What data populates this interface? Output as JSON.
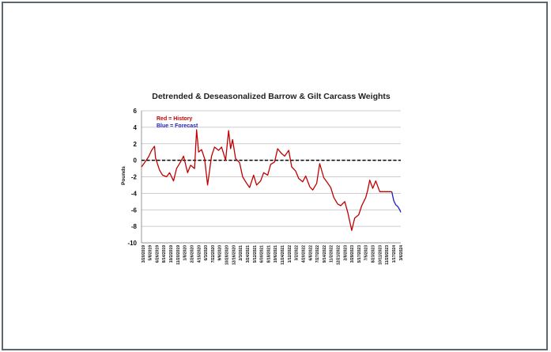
{
  "chart_data": {
    "type": "line",
    "title": "Detrended & Deseasonalized Barrow & Gilt Carcass Weights",
    "xlabel": "",
    "ylabel": "Pounds",
    "ylim": [
      -10,
      6
    ],
    "yticks": [
      "6",
      "4",
      "2",
      "0",
      "-2",
      "-4",
      "-6",
      "-8",
      "-10"
    ],
    "grid": true,
    "annotations": [
      {
        "text": "Red = History",
        "color": "#c00000"
      },
      {
        "text": "Blue = Forecast",
        "color": "#1f1fbf"
      }
    ],
    "x_tick_labels": [
      "3/20/2019",
      "5/8/2019",
      "6/26/2019",
      "8/14/2019",
      "10/2/2019",
      "11/20/2019",
      "1/8/2020",
      "2/26/2020",
      "4/15/2020",
      "6/3/2020",
      "7/22/2020",
      "9/9/2020",
      "10/28/2020",
      "12/16/2020",
      "2/3/2021",
      "3/24/2021",
      "5/12/2021",
      "6/30/2021",
      "8/18/2021",
      "10/6/2021",
      "11/24/2021",
      "1/12/2022",
      "3/2/2022",
      "4/20/2022",
      "6/8/2022",
      "7/27/2022",
      "9/14/2022",
      "11/2/2022",
      "12/21/2022",
      "2/8/2023",
      "3/29/2023",
      "5/17/2023",
      "7/5/2023",
      "8/23/2023",
      "10/11/2023",
      "11/29/2023",
      "1/17/2024",
      "3/6/2024"
    ],
    "zero_line": {
      "value": 0,
      "style": "dashed",
      "color": "#000000"
    },
    "series": [
      {
        "color": "#c00000",
        "x": [
          "2019-03-20",
          "2019-04-10",
          "2019-05-08",
          "2019-05-29",
          "2019-06-19",
          "2019-06-26",
          "2019-07-24",
          "2019-08-14",
          "2019-09-11",
          "2019-10-02",
          "2019-10-30",
          "2019-11-20",
          "2019-12-18",
          "2020-01-08",
          "2020-02-05",
          "2020-02-26",
          "2020-03-25",
          "2020-04-08",
          "2020-04-22",
          "2020-05-13",
          "2020-06-03",
          "2020-06-24",
          "2020-07-22",
          "2020-08-12",
          "2020-09-09",
          "2020-09-30",
          "2020-10-28",
          "2020-11-18",
          "2020-12-02",
          "2020-12-16",
          "2021-01-06",
          "2021-02-03",
          "2021-02-24",
          "2021-03-24",
          "2021-04-14",
          "2021-05-12",
          "2021-06-02",
          "2021-06-30",
          "2021-07-21",
          "2021-08-18",
          "2021-09-08",
          "2021-10-06",
          "2021-10-27",
          "2021-11-24",
          "2021-12-15",
          "2022-01-12",
          "2022-02-02",
          "2022-03-02",
          "2022-03-23",
          "2022-04-20",
          "2022-05-11",
          "2022-06-08",
          "2022-06-29",
          "2022-07-27",
          "2022-08-17",
          "2022-09-14",
          "2022-10-05",
          "2022-11-02",
          "2022-11-23",
          "2022-12-21",
          "2023-01-11",
          "2023-02-08",
          "2023-03-01",
          "2023-03-29",
          "2023-04-19",
          "2023-05-17",
          "2023-06-07",
          "2023-07-05",
          "2023-07-19",
          "2023-08-02",
          "2023-08-23",
          "2023-09-13",
          "2023-10-11",
          "2023-11-01",
          "2023-11-29",
          "2023-12-20",
          "2024-01-03"
        ],
        "y": [
          -0.8,
          -0.3,
          0.4,
          1.2,
          1.7,
          0.3,
          -1.2,
          -1.8,
          -2.0,
          -1.5,
          -2.5,
          -1.0,
          -0.2,
          0.5,
          -1.5,
          -0.6,
          -1.0,
          3.7,
          1.0,
          1.3,
          0.2,
          -3.0,
          0.5,
          1.6,
          1.2,
          1.6,
          0.0,
          3.6,
          1.4,
          2.5,
          0.2,
          -0.3,
          -2.0,
          -2.8,
          -3.3,
          -1.8,
          -3.0,
          -2.5,
          -1.5,
          -1.8,
          -0.5,
          -0.2,
          1.4,
          0.8,
          0.5,
          1.2,
          -0.8,
          -1.3,
          -2.2,
          -2.6,
          -1.9,
          -3.2,
          -3.6,
          -2.8,
          -0.4,
          -2.1,
          -2.6,
          -3.3,
          -4.5,
          -5.3,
          -5.5,
          -5.0,
          -6.3,
          -8.5,
          -7.0,
          -6.6,
          -5.5,
          -4.5,
          -3.6,
          -2.4,
          -3.4,
          -2.5,
          -3.8,
          -3.8,
          -3.8,
          -3.8,
          -3.8
        ]
      },
      {
        "color": "#1f1fbf",
        "x": [
          "2024-01-03",
          "2024-01-17",
          "2024-01-31",
          "2024-02-14",
          "2024-02-28",
          "2024-03-06"
        ],
        "y": [
          -3.8,
          -4.9,
          -5.4,
          -5.6,
          -6.0,
          -6.3
        ]
      }
    ]
  }
}
